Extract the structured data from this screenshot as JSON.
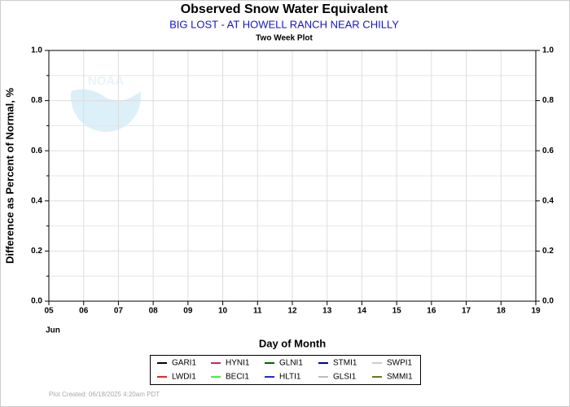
{
  "chart_data": {
    "type": "line",
    "title": "Observed Snow Water Equivalent",
    "subtitle": "BIG LOST - AT HOWELL RANCH NEAR CHILLY",
    "plot_label": "Two Week Plot",
    "logo_text": "NOAA",
    "ylabel": "Difference as Percent of Normal, %",
    "xlabel": "Day of Month",
    "month_label": "Jun",
    "footer": "Plot Created: 06/18/2025 4:20am PDT",
    "grid": true,
    "xlim": [
      5,
      19
    ],
    "xticks": [
      {
        "value": 5,
        "label": "05"
      },
      {
        "value": 6,
        "label": "06"
      },
      {
        "value": 7,
        "label": "07"
      },
      {
        "value": 8,
        "label": "08"
      },
      {
        "value": 9,
        "label": "09"
      },
      10,
      11,
      12,
      13,
      14,
      15,
      16,
      17,
      18,
      19
    ],
    "ylim": [
      0,
      1
    ],
    "yticks": [
      {
        "value": 0,
        "label": "0.0"
      },
      0.2,
      0.4,
      0.6,
      0.8,
      {
        "value": 1,
        "label": "1.0"
      }
    ],
    "y2lim": [
      0,
      1
    ],
    "y2ticks": [
      {
        "value": 0,
        "label": "0.0"
      },
      0.2,
      0.4,
      0.6,
      0.8,
      {
        "value": 1,
        "label": "1.0"
      }
    ],
    "series": [
      {
        "name": "GARI1",
        "color": "#000000",
        "values": []
      },
      {
        "name": "LWDI1",
        "color": "#ee2222",
        "values": []
      },
      {
        "name": "HYNI1",
        "color": "#bb3355",
        "values": []
      },
      {
        "name": "BECI1",
        "color": "#44ee44",
        "values": []
      },
      {
        "name": "GLNI1",
        "color": "#006600",
        "values": []
      },
      {
        "name": "HLTI1",
        "color": "#2222ee",
        "values": []
      },
      {
        "name": "STMI1",
        "color": "#000099",
        "values": []
      },
      {
        "name": "GLSI1",
        "color": "#bbbbbb",
        "values": []
      },
      {
        "name": "SWPI1",
        "color": "#cccccc",
        "values": []
      },
      {
        "name": "SMMI1",
        "color": "#667722",
        "values": []
      }
    ]
  }
}
